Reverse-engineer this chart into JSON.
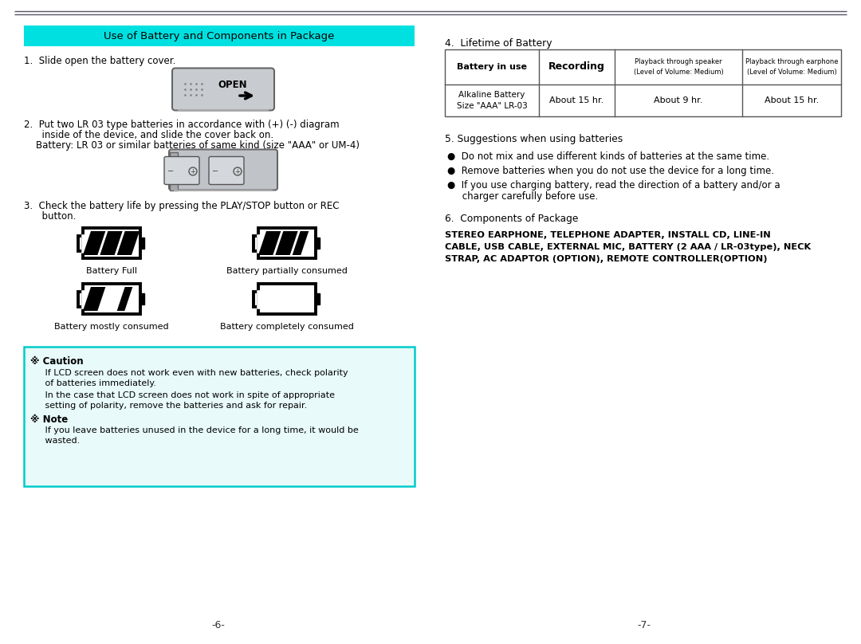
{
  "bg_color": "#ffffff",
  "page_width": 10.8,
  "page_height": 8.08,
  "top_line_color": "#555566",
  "left_page": {
    "header_bg": "#00e0e0",
    "header_text": "Use of Battery and Components in Package",
    "header_text_color": "#000000",
    "step1_text": "1.  Slide open the battery cover.",
    "step2_text1": "2.  Put two LR 03 type batteries in accordance with (+) (-) diagram",
    "step2_text2": "      inside of the device, and slide the cover back on.",
    "step2_text3": "    Battery: LR 03 or similar batteries of same kind (size \"AAA\" or UM-4)",
    "step3_text1": "3.  Check the battery life by pressing the PLAY/STOP button or REC",
    "step3_text2": "      button.",
    "battery_full_label": "Battery Full",
    "battery_partial_label": "Battery partially consumed",
    "battery_mostly_label": "Battery mostly consumed",
    "battery_empty_label": "Battery completely consumed",
    "caution_border_color": "#00cccc",
    "caution_bg": "#e8fafa",
    "caution_title1": "※ Caution",
    "caution_line1": "   If LCD screen does not work even with new batteries, check polarity",
    "caution_line2": "   of batteries immediately.",
    "caution_line3": "   In the case that LCD screen does not work in spite of appropriate",
    "caution_line4": "   setting of polarity, remove the batteries and ask for repair.",
    "note_title": "※ Note",
    "note_line1": "   If you leave batteries unused in the device for a long time, it would be",
    "note_line2": "   wasted.",
    "page_num": "−6−"
  },
  "right_page": {
    "section4_title": "4.  Lifetime of Battery",
    "table_header1": "Battery in use",
    "table_header2": "Recording",
    "table_header3a": "Playback through speaker",
    "table_header3b": "(Level of Volume: Medium)",
    "table_header4a": "Playback through earphone",
    "table_header4b": "(Level of Volume: Medium)",
    "table_row1a": "Alkaline Battery",
    "table_row1b": "Size \"AAA\" LR-03",
    "table_row2": "About 15 hr.",
    "table_row3": "About 9 hr.",
    "table_row4": "About 15 hr.",
    "section5_title": "5. Suggestions when using batteries",
    "bullet1": "●  Do not mix and use different kinds of batteries at the same time.",
    "bullet2": "●  Remove batteries when you do not use the device for a long time.",
    "bullet3a": "●  If you use charging battery, read the direction of a battery and/or a",
    "bullet3b": "     charger carefully before use.",
    "section6_title": "6.  Components of Package",
    "components_text1": "STEREO EARPHONE, TELEPHONE ADAPTER, INSTALL CD, LINE-IN",
    "components_text2": "CABLE, USB CABLE, EXTERNAL MIC, BATTERY (2 AAA / LR-03type), NECK",
    "components_text3": "STRAP, AC ADAPTOR (OPTION), REMOTE CONTROLLER(OPTION)",
    "page_num": "−7−"
  }
}
